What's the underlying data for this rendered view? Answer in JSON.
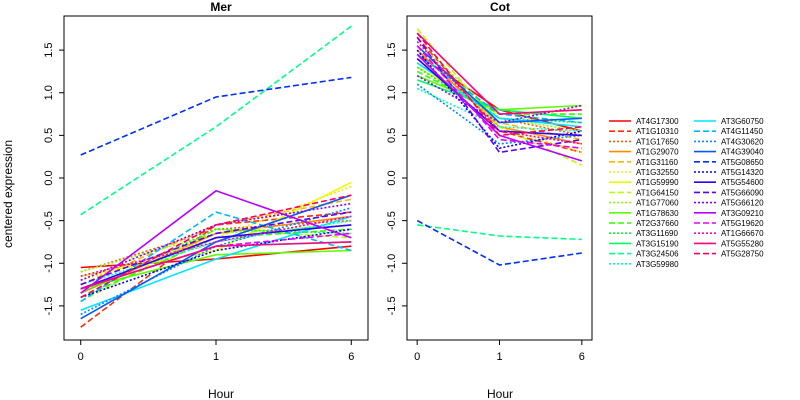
{
  "ylabel": "centered expression",
  "chart_data": [
    {
      "type": "line",
      "title": "Mer",
      "xlabel": "Hour",
      "x": [
        "0",
        "1",
        "6"
      ],
      "ylim": [
        -1.9,
        1.9
      ],
      "yticks": [
        "-1.5",
        "-1.0",
        "-0.5",
        "0.0",
        "0.5",
        "1.0",
        "1.5"
      ],
      "series": [
        {
          "name": "AT4G17300",
          "values": [
            -1.05,
            -0.95,
            -0.8
          ]
        },
        {
          "name": "AT1G10310",
          "values": [
            -1.75,
            -0.55,
            -0.4
          ]
        },
        {
          "name": "AT1G17650",
          "values": [
            -1.1,
            -0.6,
            -0.5
          ]
        },
        {
          "name": "AT1G29070",
          "values": [
            -1.35,
            -0.65,
            -0.45
          ]
        },
        {
          "name": "AT1G31160",
          "values": [
            -1.25,
            -0.55,
            -0.25
          ]
        },
        {
          "name": "AT1G32550",
          "values": [
            -1.2,
            -0.7,
            -0.1
          ]
        },
        {
          "name": "AT1G59990",
          "values": [
            -1.15,
            -0.85,
            -0.05
          ]
        },
        {
          "name": "AT1G64150",
          "values": [
            -1.45,
            -0.6,
            -0.7
          ]
        },
        {
          "name": "AT1G77060",
          "values": [
            -1.1,
            -0.65,
            -0.55
          ]
        },
        {
          "name": "AT1G78630",
          "values": [
            -1.3,
            -0.9,
            -0.85
          ]
        },
        {
          "name": "AT2G37660",
          "values": [
            -1.4,
            -0.7,
            -0.6
          ]
        },
        {
          "name": "AT3G11690",
          "values": [
            -1.35,
            -0.6,
            -0.65
          ]
        },
        {
          "name": "AT3G15190",
          "values": [
            -1.3,
            -0.8,
            -0.75
          ]
        },
        {
          "name": "AT3G24506",
          "values": [
            -0.43,
            0.6,
            1.78
          ]
        },
        {
          "name": "AT3G59980",
          "values": [
            -1.25,
            -0.75,
            -0.5
          ]
        },
        {
          "name": "AT3G60750",
          "values": [
            -1.55,
            -0.95,
            -0.45
          ]
        },
        {
          "name": "AT4G11450",
          "values": [
            -1.45,
            -0.4,
            -0.85
          ]
        },
        {
          "name": "AT4G30620",
          "values": [
            -1.6,
            -0.8,
            -0.35
          ]
        },
        {
          "name": "AT4G39040",
          "values": [
            -1.65,
            -0.75,
            -0.2
          ]
        },
        {
          "name": "AT5G08650",
          "values": [
            0.27,
            0.95,
            1.18
          ]
        },
        {
          "name": "AT5G14320",
          "values": [
            -1.4,
            -0.85,
            -0.6
          ]
        },
        {
          "name": "AT5G54600",
          "values": [
            -1.3,
            -0.7,
            -0.55
          ]
        },
        {
          "name": "AT5G66090",
          "values": [
            -1.25,
            -0.65,
            -0.4
          ]
        },
        {
          "name": "AT5G66120",
          "values": [
            -1.2,
            -0.55,
            -0.3
          ]
        },
        {
          "name": "AT3G09210",
          "values": [
            -1.35,
            -0.15,
            -0.7
          ]
        },
        {
          "name": "AT5G19620",
          "values": [
            -1.3,
            -0.8,
            -0.65
          ]
        },
        {
          "name": "AT1G66670",
          "values": [
            -1.15,
            -0.75,
            -0.45
          ]
        },
        {
          "name": "AT5G55280",
          "values": [
            -1.3,
            -0.8,
            -0.75
          ]
        },
        {
          "name": "AT5G28750",
          "values": [
            -1.4,
            -0.55,
            -0.2
          ]
        }
      ]
    },
    {
      "type": "line",
      "title": "Cot",
      "xlabel": "Hour",
      "x": [
        "0",
        "1",
        "6"
      ],
      "ylim": [
        -1.9,
        1.9
      ],
      "yticks": [
        "-1.5",
        "-1.0",
        "-0.5",
        "0.0",
        "0.5",
        "1.0",
        "1.5"
      ],
      "series": [
        {
          "name": "AT4G17300",
          "values": [
            1.45,
            0.8,
            0.55
          ]
        },
        {
          "name": "AT1G10310",
          "values": [
            1.65,
            0.55,
            0.3
          ]
        },
        {
          "name": "AT1G17650",
          "values": [
            1.35,
            0.7,
            0.5
          ]
        },
        {
          "name": "AT1G29070",
          "values": [
            1.5,
            0.6,
            0.4
          ]
        },
        {
          "name": "AT1G31160",
          "values": [
            1.4,
            0.65,
            0.45
          ]
        },
        {
          "name": "AT1G32550",
          "values": [
            1.55,
            0.6,
            0.3
          ]
        },
        {
          "name": "AT1G59990",
          "values": [
            1.3,
            0.75,
            0.8
          ]
        },
        {
          "name": "AT1G64150",
          "values": [
            1.75,
            0.6,
            0.15
          ]
        },
        {
          "name": "AT1G77060",
          "values": [
            1.6,
            0.7,
            0.55
          ]
        },
        {
          "name": "AT1G78630",
          "values": [
            1.2,
            0.8,
            0.85
          ]
        },
        {
          "name": "AT2G37660",
          "values": [
            1.25,
            0.75,
            0.75
          ]
        },
        {
          "name": "AT3G11690",
          "values": [
            1.3,
            0.7,
            0.65
          ]
        },
        {
          "name": "AT3G15190",
          "values": [
            1.15,
            0.8,
            0.7
          ]
        },
        {
          "name": "AT3G24506",
          "values": [
            -0.55,
            -0.68,
            -0.72
          ]
        },
        {
          "name": "AT3G59980",
          "values": [
            1.05,
            0.6,
            0.55
          ]
        },
        {
          "name": "AT3G60750",
          "values": [
            1.35,
            0.7,
            0.6
          ]
        },
        {
          "name": "AT4G11450",
          "values": [
            1.45,
            0.75,
            0.65
          ]
        },
        {
          "name": "AT4G30620",
          "values": [
            1.1,
            0.4,
            0.5
          ]
        },
        {
          "name": "AT4G39040",
          "values": [
            1.55,
            0.65,
            0.7
          ]
        },
        {
          "name": "AT5G08650",
          "values": [
            -0.5,
            -1.02,
            -0.88
          ]
        },
        {
          "name": "AT5G14320",
          "values": [
            1.5,
            0.35,
            0.55
          ]
        },
        {
          "name": "AT5G54600",
          "values": [
            1.4,
            0.55,
            0.5
          ]
        },
        {
          "name": "AT5G66090",
          "values": [
            1.65,
            0.3,
            0.45
          ]
        },
        {
          "name": "AT5G66120",
          "values": [
            1.2,
            0.65,
            0.85
          ]
        },
        {
          "name": "AT3G09210",
          "values": [
            1.45,
            0.5,
            0.2
          ]
        },
        {
          "name": "AT5G19620",
          "values": [
            1.55,
            0.45,
            0.35
          ]
        },
        {
          "name": "AT1G66670",
          "values": [
            1.6,
            0.55,
            0.4
          ]
        },
        {
          "name": "AT5G55280",
          "values": [
            1.7,
            0.75,
            0.8
          ]
        },
        {
          "name": "AT5G28750",
          "values": [
            1.7,
            0.5,
            0.6
          ]
        }
      ]
    }
  ],
  "legend": {
    "placement": "right",
    "entries": [
      {
        "name": "AT4G17300",
        "color": "#ff0000",
        "style": "solid"
      },
      {
        "name": "AT1G10310",
        "color": "#ff2e00",
        "style": "longdash"
      },
      {
        "name": "AT1G17650",
        "color": "#ff5c00",
        "style": "dotted"
      },
      {
        "name": "AT1G29070",
        "color": "#ff8a00",
        "style": "solid"
      },
      {
        "name": "AT1G31160",
        "color": "#ffb800",
        "style": "longdash"
      },
      {
        "name": "AT1G32550",
        "color": "#ffe600",
        "style": "dotted"
      },
      {
        "name": "AT1G59990",
        "color": "#e6ff00",
        "style": "solid"
      },
      {
        "name": "AT1G64150",
        "color": "#b8ff00",
        "style": "longdash"
      },
      {
        "name": "AT1G77060",
        "color": "#8aff00",
        "style": "dotted"
      },
      {
        "name": "AT1G78630",
        "color": "#5cff00",
        "style": "solid"
      },
      {
        "name": "AT2G37660",
        "color": "#2eff00",
        "style": "longdash"
      },
      {
        "name": "AT3G11690",
        "color": "#00ff2e",
        "style": "dotted"
      },
      {
        "name": "AT3G15190",
        "color": "#00ff5c",
        "style": "solid"
      },
      {
        "name": "AT3G24506",
        "color": "#00ff8a",
        "style": "longdash"
      },
      {
        "name": "AT3G59980",
        "color": "#00ffb8",
        "style": "dotted"
      },
      {
        "name": "AT3G60750",
        "color": "#00e6ff",
        "style": "solid"
      },
      {
        "name": "AT4G11450",
        "color": "#00b8ff",
        "style": "longdash"
      },
      {
        "name": "AT4G30620",
        "color": "#008aff",
        "style": "dotted"
      },
      {
        "name": "AT4G39040",
        "color": "#005cff",
        "style": "solid"
      },
      {
        "name": "AT5G08650",
        "color": "#002eff",
        "style": "longdash"
      },
      {
        "name": "AT5G14320",
        "color": "#0000ff",
        "style": "dotted"
      },
      {
        "name": "AT5G54600",
        "color": "#2e00ff",
        "style": "solid"
      },
      {
        "name": "AT5G66090",
        "color": "#5c00ff",
        "style": "longdash"
      },
      {
        "name": "AT5G66120",
        "color": "#8a00ff",
        "style": "dotted"
      },
      {
        "name": "AT3G09210",
        "color": "#b800ff",
        "style": "solid"
      },
      {
        "name": "AT5G19620",
        "color": "#e600ff",
        "style": "longdash"
      },
      {
        "name": "AT1G66670",
        "color": "#ff00b8",
        "style": "dotted"
      },
      {
        "name": "AT5G55280",
        "color": "#ff008a",
        "style": "solid"
      },
      {
        "name": "AT5G28750",
        "color": "#ff005c",
        "style": "longdash"
      }
    ]
  }
}
